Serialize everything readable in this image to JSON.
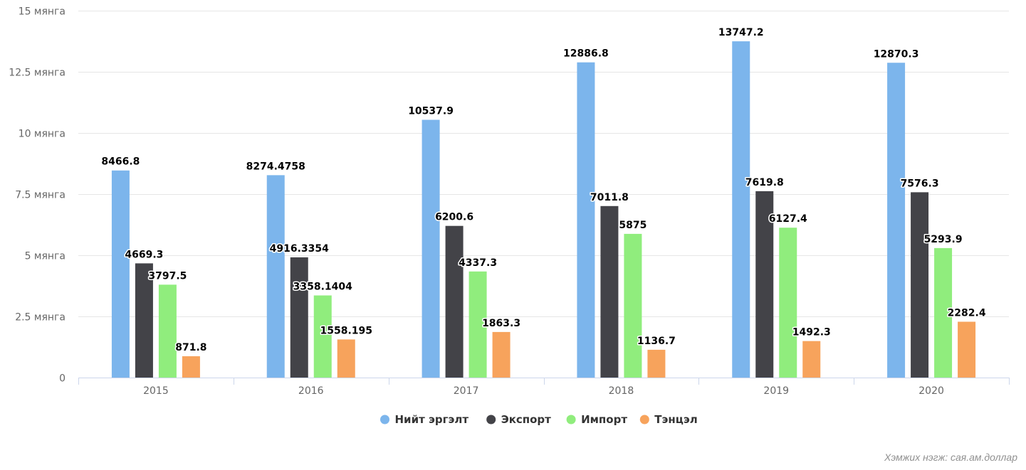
{
  "chart_data": {
    "type": "bar",
    "categories": [
      "2015",
      "2016",
      "2017",
      "2018",
      "2019",
      "2020"
    ],
    "series": [
      {
        "name": "Нийт эргэлт",
        "color": "#7cb5ec",
        "values": [
          8466.8,
          8274.4758,
          10537.9,
          12886.8,
          13747.2,
          12870.3
        ],
        "labels": [
          "8466.8",
          "8274.4758",
          "10537.9",
          "12886.8",
          "13747.2",
          "12870.3"
        ]
      },
      {
        "name": "Экспорт",
        "color": "#434348",
        "values": [
          4669.3,
          4916.3354,
          6200.6,
          7011.8,
          7619.8,
          7576.3
        ],
        "labels": [
          "4669.3",
          "4916.3354",
          "6200.6",
          "7011.8",
          "7619.8",
          "7576.3"
        ]
      },
      {
        "name": "Импорт",
        "color": "#90ed7d",
        "values": [
          3797.5,
          3358.1404,
          4337.3,
          5875,
          6127.4,
          5293.9
        ],
        "labels": [
          "3797.5",
          "3358.1404",
          "4337.3",
          "5875",
          "6127.4",
          "5293.9"
        ]
      },
      {
        "name": "Тэнцэл",
        "color": "#f7a35c",
        "values": [
          871.8,
          1558.195,
          1863.3,
          1136.7,
          1492.3,
          2282.4
        ],
        "labels": [
          "871.8",
          "1558.195",
          "1863.3",
          "1136.7",
          "1492.3",
          "2282.4"
        ]
      }
    ],
    "ylim": [
      0,
      15000
    ],
    "yticks": [
      {
        "value": 0,
        "label": "0"
      },
      {
        "value": 2500,
        "label": "2.5 мянга"
      },
      {
        "value": 5000,
        "label": "5 мянга"
      },
      {
        "value": 7500,
        "label": "7.5 мянга"
      },
      {
        "value": 10000,
        "label": "10 мянга"
      },
      {
        "value": 12500,
        "label": "12.5 мянга"
      },
      {
        "value": 15000,
        "label": "15 мянга"
      }
    ],
    "grid": true,
    "legend": "bottom-center",
    "credit": "Хэмжих нэгж: сая.ам.доллар"
  }
}
